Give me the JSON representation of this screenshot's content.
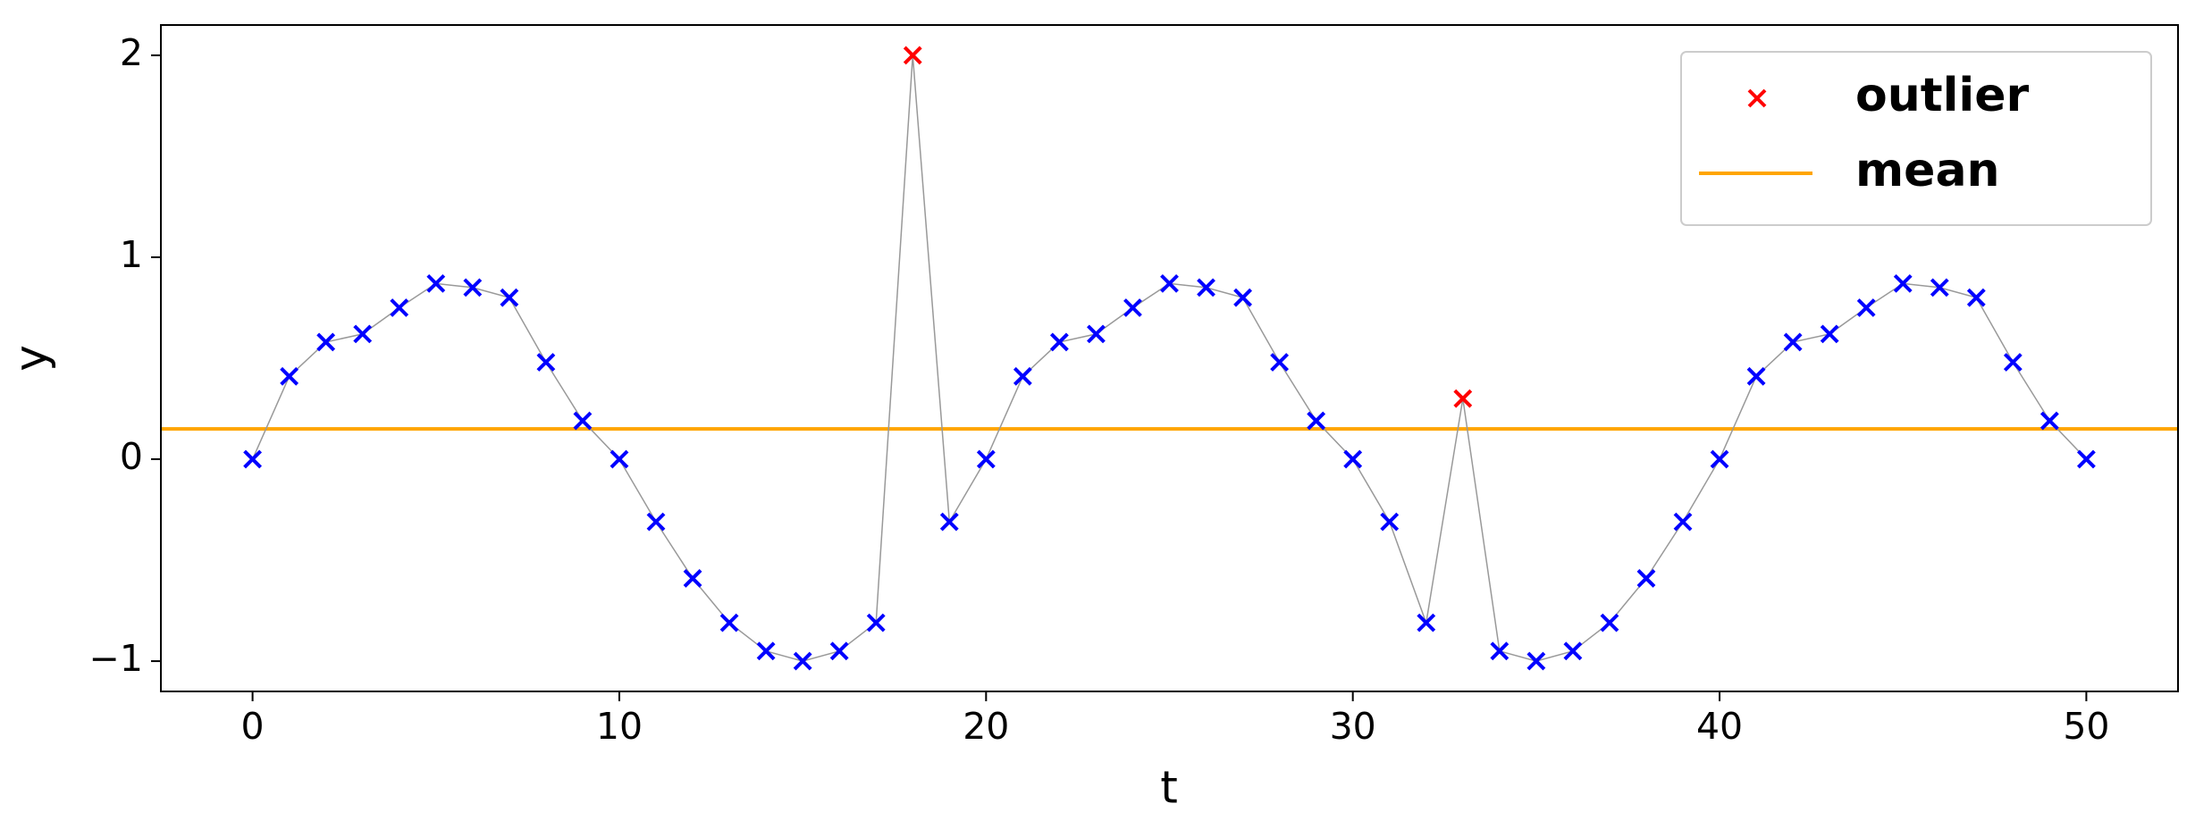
{
  "chart_data": {
    "type": "line",
    "x_label": "t",
    "y_label": "y",
    "x": [
      0,
      1,
      2,
      3,
      4,
      5,
      6,
      7,
      8,
      9,
      10,
      11,
      12,
      13,
      14,
      15,
      16,
      17,
      18,
      19,
      20,
      21,
      22,
      23,
      24,
      25,
      26,
      27,
      28,
      29,
      30,
      31,
      32,
      33,
      34,
      35,
      36,
      37,
      38,
      39,
      40,
      41,
      42,
      43,
      44,
      45,
      46,
      47,
      48,
      49,
      50
    ],
    "values": [
      0,
      0.41,
      0.58,
      0.62,
      0.75,
      0.87,
      0.85,
      0.8,
      0.48,
      0.19,
      0,
      -0.31,
      -0.59,
      -0.81,
      -0.95,
      -1.0,
      -0.95,
      -0.81,
      2.0,
      -0.31,
      0,
      0.41,
      0.58,
      0.62,
      0.75,
      0.87,
      0.85,
      0.8,
      0.48,
      0.19,
      0,
      -0.31,
      -0.81,
      0.3,
      -0.95,
      -1.0,
      -0.95,
      -0.81,
      -0.59,
      -0.31,
      0,
      0.41,
      0.58,
      0.62,
      0.75,
      0.87,
      0.85,
      0.8,
      0.48,
      0.19,
      0
    ],
    "line_color": "#999999",
    "marker_color": "#0000ff",
    "outliers": {
      "name": "outlier",
      "color": "#ff0000",
      "x": [
        18,
        33
      ],
      "values": [
        2.0,
        0.3
      ]
    },
    "mean": {
      "name": "mean",
      "color": "#ffa500",
      "value": 0.15
    },
    "xlim": [
      -2.5,
      52.5
    ],
    "xticks": [
      0,
      10,
      20,
      30,
      40,
      50
    ],
    "ylim": [
      -1.15,
      2.15
    ],
    "yticks": [
      {
        "value": -1,
        "label": "−1"
      },
      0,
      1,
      2
    ],
    "legend": "upper right"
  }
}
